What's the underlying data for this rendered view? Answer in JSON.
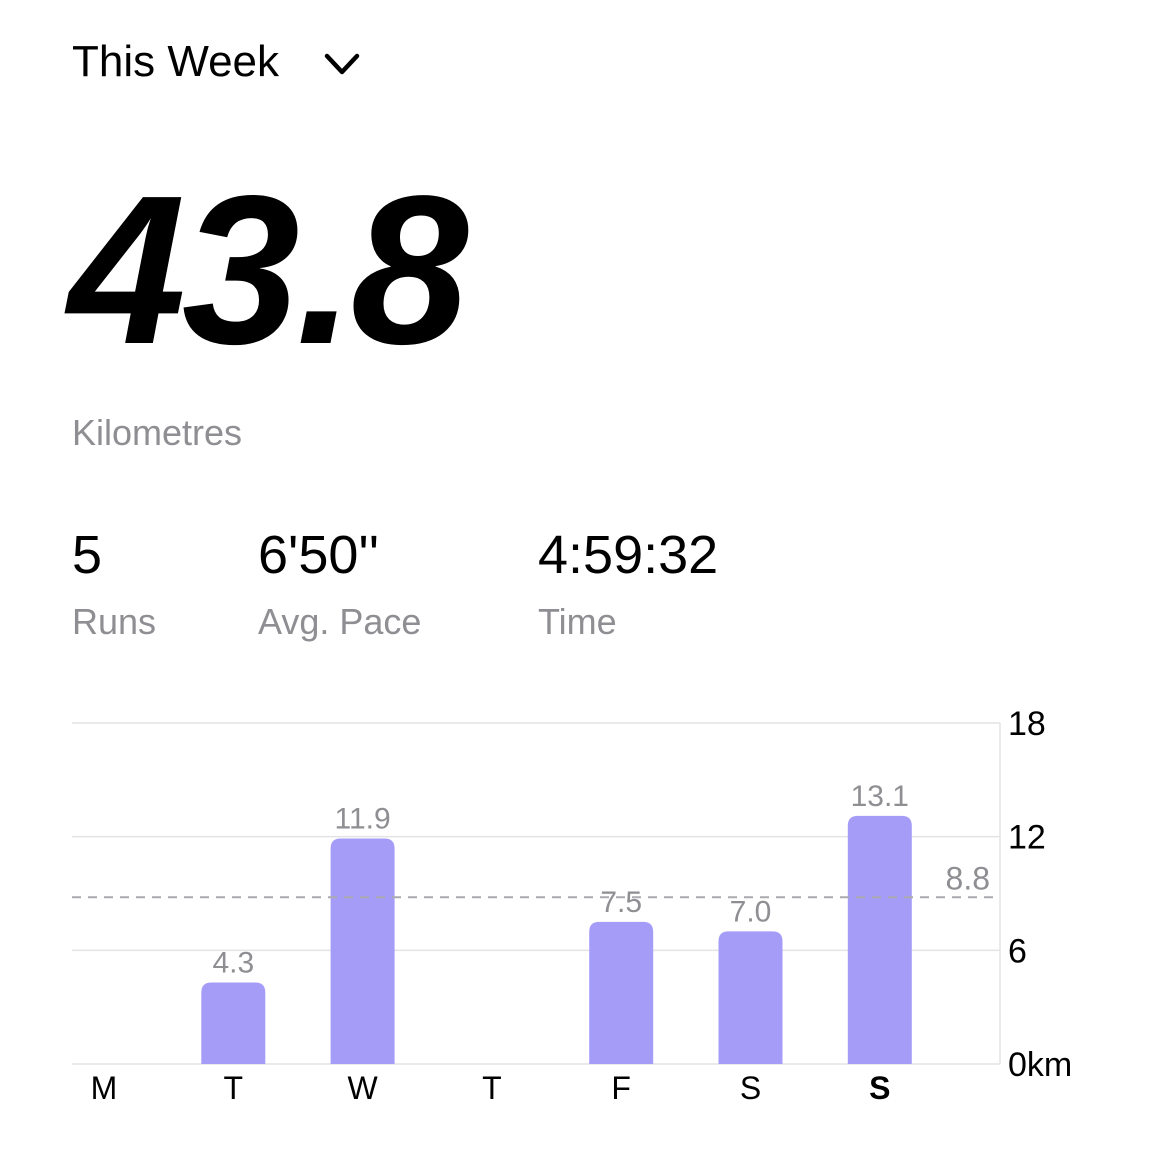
{
  "header": {
    "period": "This Week"
  },
  "summary": {
    "distance": "43.8",
    "distance_unit": "Kilometres",
    "stats": [
      {
        "value": "5",
        "label": "Runs"
      },
      {
        "value": "6'50''",
        "label": "Avg. Pace"
      },
      {
        "value": "4:59:32",
        "label": "Time"
      }
    ]
  },
  "chart_data": {
    "type": "bar",
    "categories": [
      "M",
      "T",
      "W",
      "T",
      "F",
      "S",
      "S"
    ],
    "values": [
      0,
      4.3,
      11.9,
      0,
      7.5,
      7.0,
      13.1
    ],
    "value_labels": [
      null,
      "4.3",
      "11.9",
      null,
      "7.5",
      "7.0",
      "13.1"
    ],
    "color": "#a59cf8",
    "average": 8.8,
    "ylim": [
      0,
      18
    ],
    "yticks": [
      {
        "value": 0,
        "label": "0km"
      },
      6,
      12,
      18
    ],
    "grid": true,
    "highlighted_category": 6
  }
}
